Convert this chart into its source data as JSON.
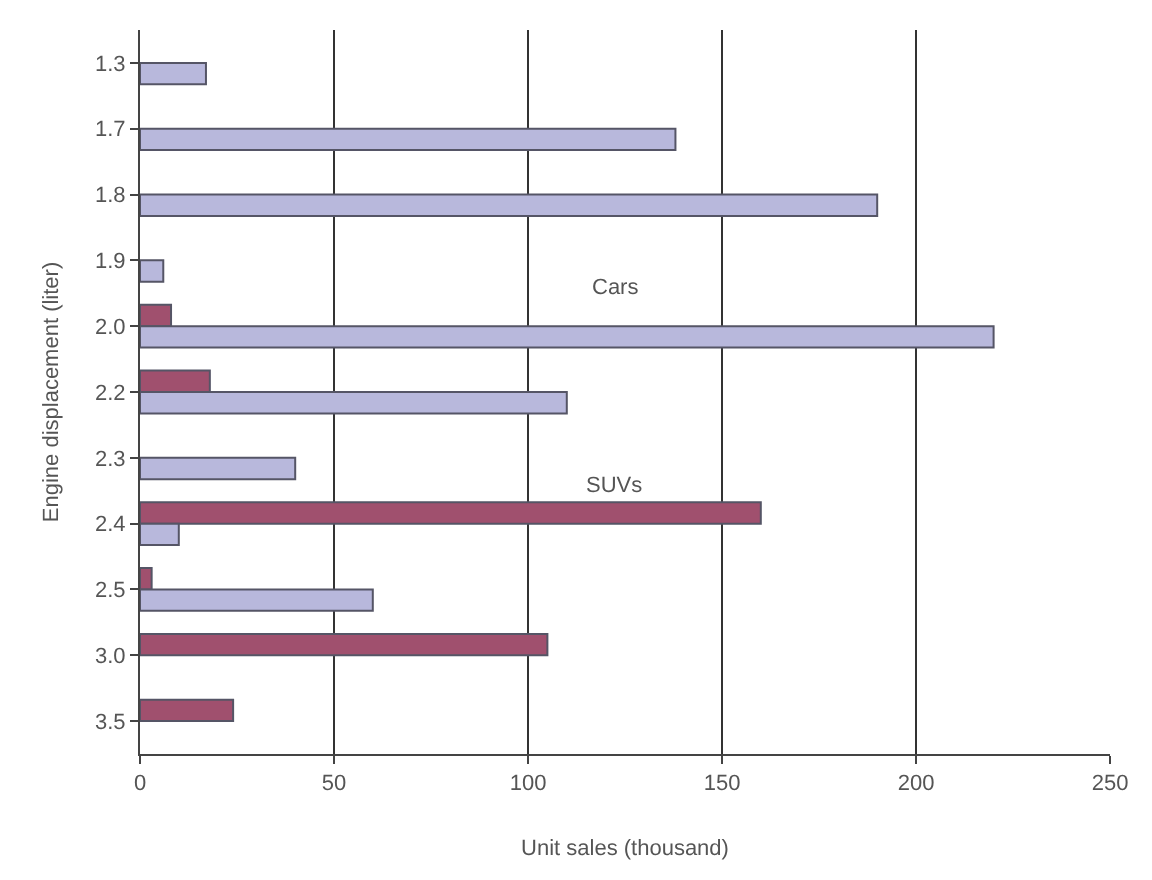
{
  "chart_data": {
    "type": "bar",
    "orientation": "horizontal",
    "xlabel": "Unit sales (thousand)",
    "ylabel": "Engine displacement (liter)",
    "categories": [
      "1.3",
      "1.7",
      "1.8",
      "1.9",
      "2.0",
      "2.2",
      "2.3",
      "2.4",
      "2.5",
      "3.0",
      "3.5"
    ],
    "series": [
      {
        "name": "SUVs",
        "color": "#a0506e",
        "values": [
          null,
          null,
          null,
          null,
          8,
          18,
          null,
          160,
          3,
          105,
          24
        ]
      },
      {
        "name": "Cars",
        "color": "#b8b8dc",
        "values": [
          17,
          138,
          190,
          6,
          220,
          110,
          40,
          10,
          60,
          null,
          null
        ]
      }
    ],
    "xlim": [
      0,
      250
    ],
    "xticks": [
      0,
      50,
      100,
      150,
      200,
      250
    ],
    "grid": "x",
    "legend": false
  }
}
